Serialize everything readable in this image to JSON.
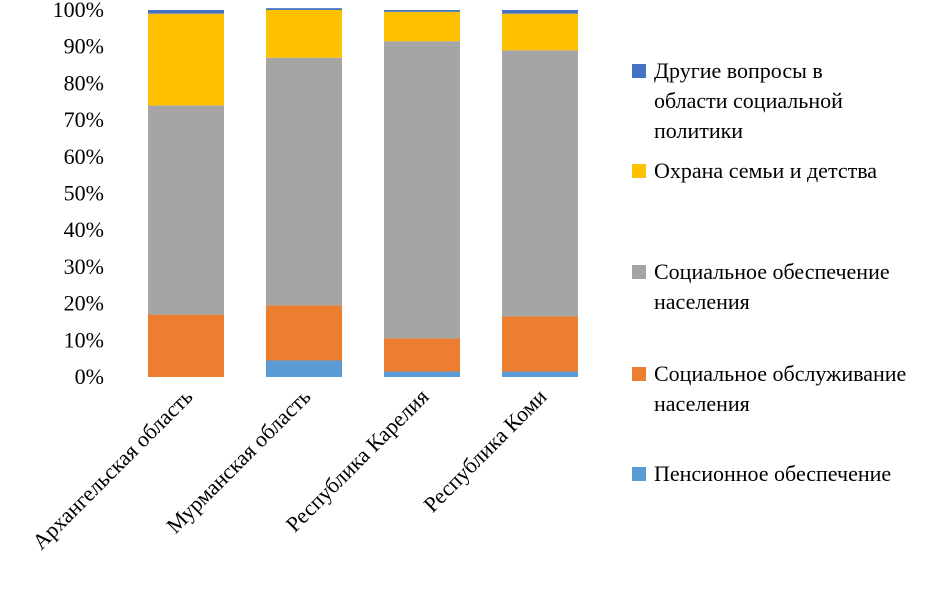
{
  "chart_data": {
    "type": "bar",
    "stacked": true,
    "percent_stacked": true,
    "categories": [
      "Архангельская область",
      "Мурманская область",
      "Республика Карелия",
      "Республика Коми"
    ],
    "series": [
      {
        "name": "Пенсионное обеспечение",
        "values": [
          0,
          4.5,
          1.5,
          1.5
        ],
        "color": "#5B9BD5"
      },
      {
        "name": "Социальное обслуживание населения",
        "values": [
          17,
          15,
          9,
          15
        ],
        "color": "#ED7D31"
      },
      {
        "name": "Социальное обеспечение населения",
        "values": [
          57,
          67.5,
          81,
          72.5
        ],
        "color": "#A5A5A5"
      },
      {
        "name": "Охрана семьи и детства",
        "values": [
          25,
          13,
          8,
          10
        ],
        "color": "#FFC000"
      },
      {
        "name": "Другие вопросы в области социальной политики",
        "values": [
          1,
          0.5,
          0.5,
          1
        ],
        "color": "#4472C4"
      }
    ],
    "y_ticks": [
      "0%",
      "10%",
      "20%",
      "30%",
      "40%",
      "50%",
      "60%",
      "70%",
      "80%",
      "90%",
      "100%"
    ],
    "ylim": [
      0,
      100
    ],
    "grid": false,
    "legend_position": "right"
  },
  "legend": {
    "items": [
      {
        "label": "Другие вопросы в области социальной политики",
        "color": "#4472C4"
      },
      {
        "label": "Охрана семьи и детства",
        "color": "#FFC000"
      },
      {
        "label": "Социальное обеспечение населения",
        "color": "#A5A5A5"
      },
      {
        "label": "Социальное обслуживание населения",
        "color": "#ED7D31"
      },
      {
        "label": "Пенсионное обеспечение",
        "color": "#5B9BD5"
      }
    ]
  }
}
